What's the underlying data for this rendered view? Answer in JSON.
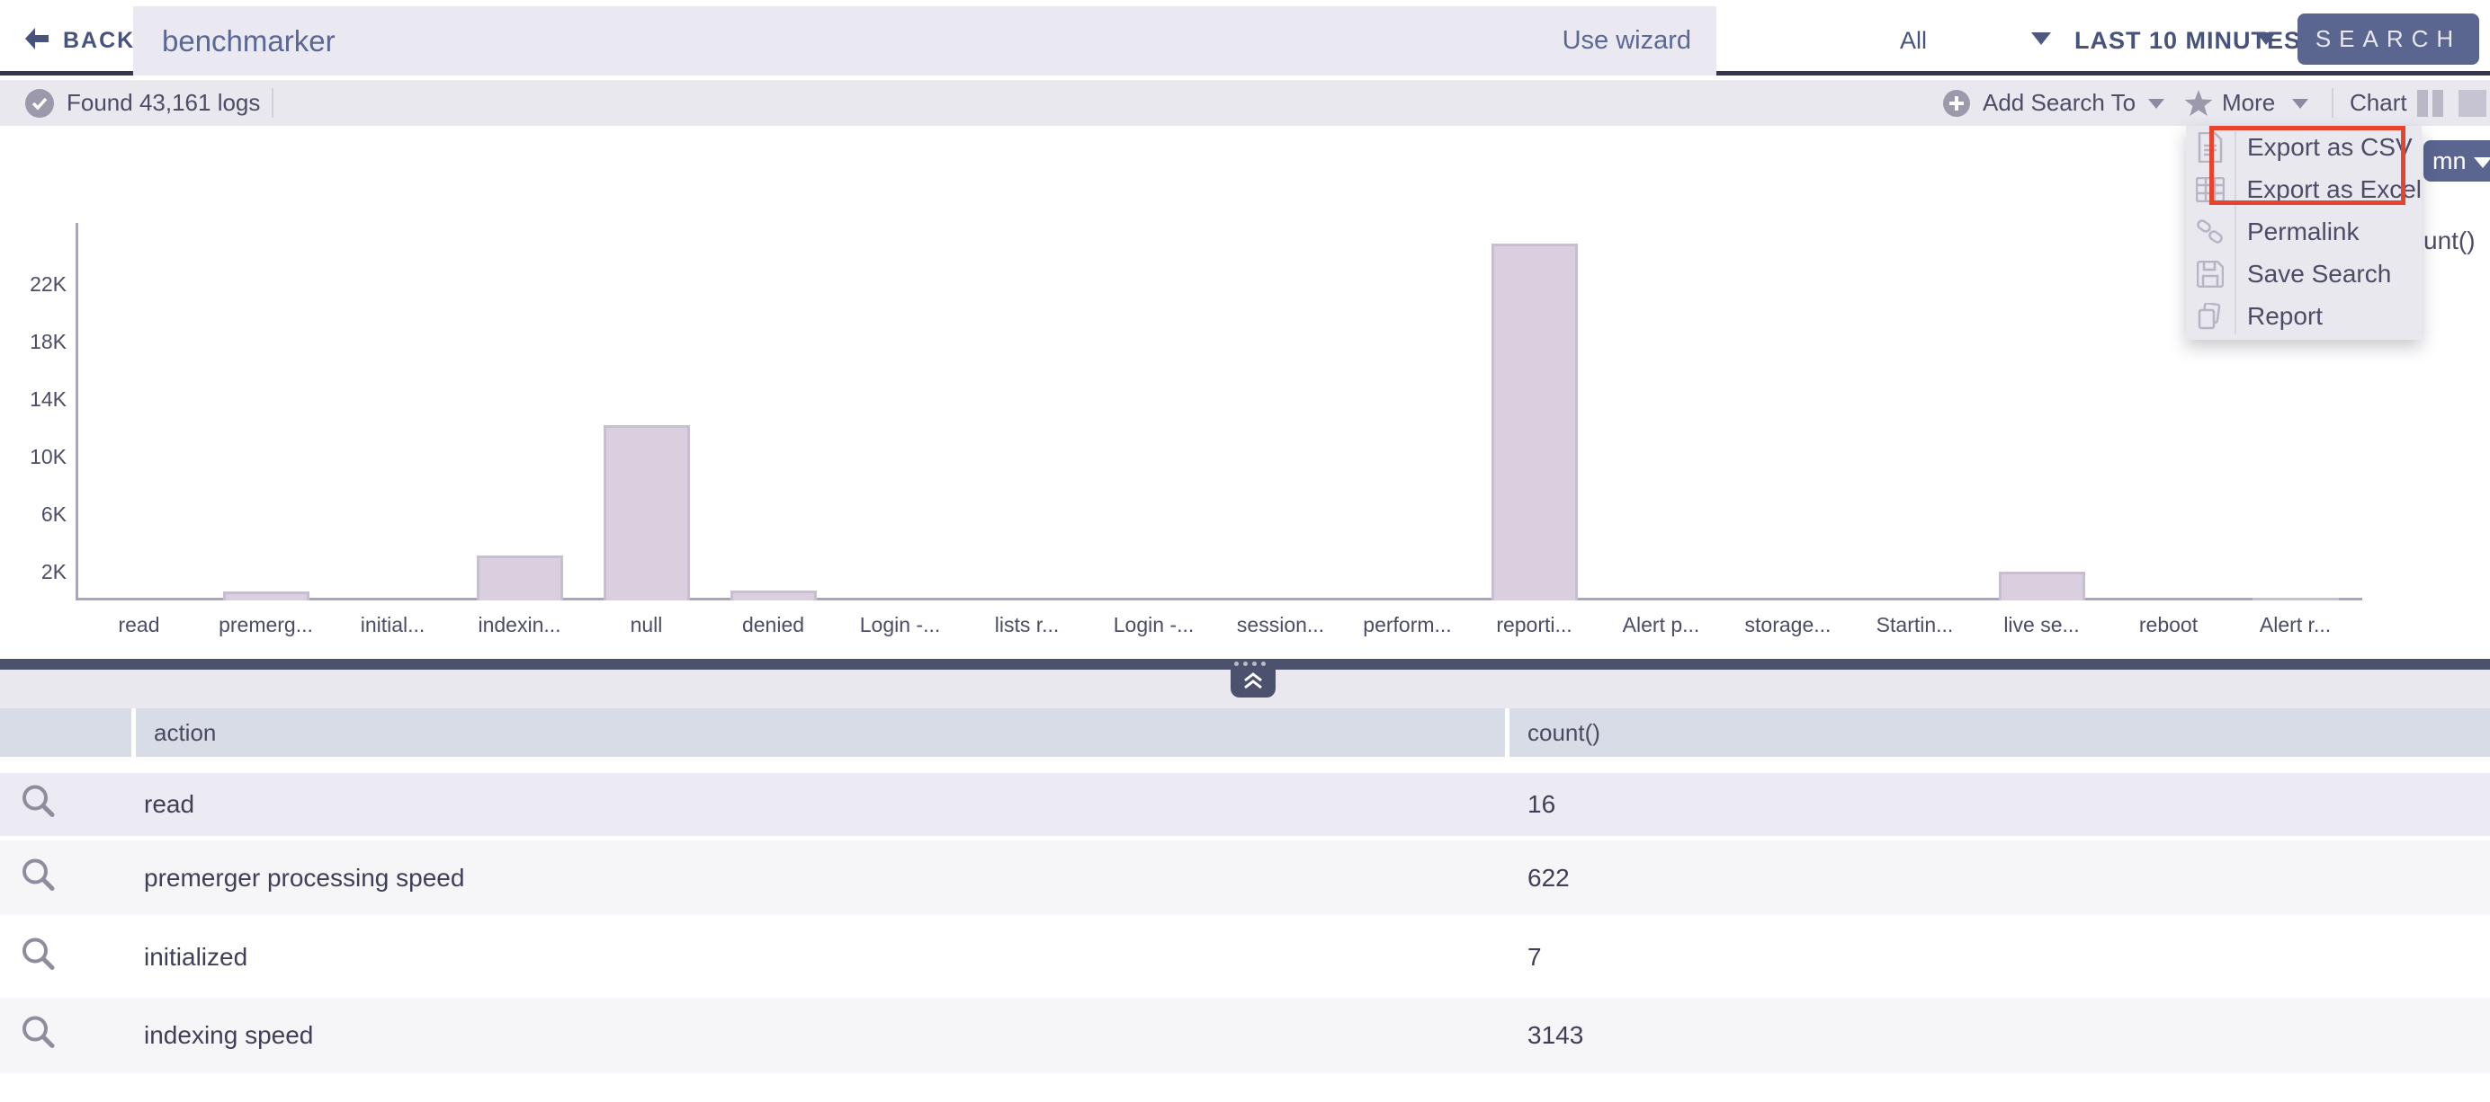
{
  "topbar": {
    "back_label": "BACK",
    "query": "benchmarker",
    "use_wizard": "Use wizard",
    "scope": "All",
    "time_range": "LAST 10 MINUTES",
    "search_label": "SEARCH"
  },
  "toolbar": {
    "found": "Found 43,161 logs",
    "add_search_to": "Add Search To",
    "more": "More",
    "chart": "Chart"
  },
  "menu": {
    "items": [
      {
        "label": "Export as CSV",
        "icon": "document-icon"
      },
      {
        "label": "Export as Excel",
        "icon": "table-icon"
      },
      {
        "label": "Permalink",
        "icon": "link-icon"
      },
      {
        "label": "Save Search",
        "icon": "save-icon"
      },
      {
        "label": "Report",
        "icon": "report-icon"
      }
    ],
    "highlighted_items": [
      "Export as CSV",
      "Export as Excel"
    ]
  },
  "clipped": {
    "button_fragment": "mn",
    "count_fragment": "unt()"
  },
  "chart_data": {
    "type": "bar",
    "categories": [
      "read",
      "premerg...",
      "initial...",
      "indexin...",
      "null",
      "denied",
      "Login -...",
      "lists r...",
      "Login -...",
      "session...",
      "perform...",
      "reporti...",
      "Alert p...",
      "storage...",
      "Startin...",
      "live se...",
      "reboot",
      "Alert r..."
    ],
    "values": [
      16,
      622,
      7,
      3143,
      12200,
      700,
      0,
      0,
      0,
      0,
      0,
      24800,
      0,
      0,
      0,
      2000,
      0,
      200
    ],
    "yticks": [
      {
        "label": "22K",
        "value": 22000
      },
      {
        "label": "18K",
        "value": 18000
      },
      {
        "label": "14K",
        "value": 14000
      },
      {
        "label": "10K",
        "value": 10000
      },
      {
        "label": "6K",
        "value": 6000
      },
      {
        "label": "2K",
        "value": 2000
      }
    ],
    "title": "",
    "xlabel": "",
    "ylabel": "",
    "ylim": [
      0,
      25000
    ],
    "grid": false,
    "legend": false
  },
  "table": {
    "columns": [
      "action",
      "count()"
    ],
    "rows": [
      {
        "action": "read",
        "count": "16"
      },
      {
        "action": "premerger processing speed",
        "count": "622"
      },
      {
        "action": "initialized",
        "count": "7"
      },
      {
        "action": "indexing speed",
        "count": "3143"
      }
    ]
  },
  "colors": {
    "accent_button": "#5a6590",
    "topbar_border": "#35364e",
    "toolbar_bg": "#e9e8ef",
    "input_bg": "#eae9f2",
    "bar_fill": "#d9cfde",
    "bar_border": "#c9bdd2",
    "divider": "#4c516d",
    "table_header_bg": "#d8dce6",
    "row_highlight": "#eceaf2",
    "row_alt": "#f6f5f8",
    "highlight_outline": "#e8432e",
    "text_primary": "#4c4c66",
    "text_blue": "#5b6795",
    "icon_gray": "#9c99aa",
    "menu_icon_gray": "#b7b4c3",
    "axis": "#aba5bb"
  }
}
